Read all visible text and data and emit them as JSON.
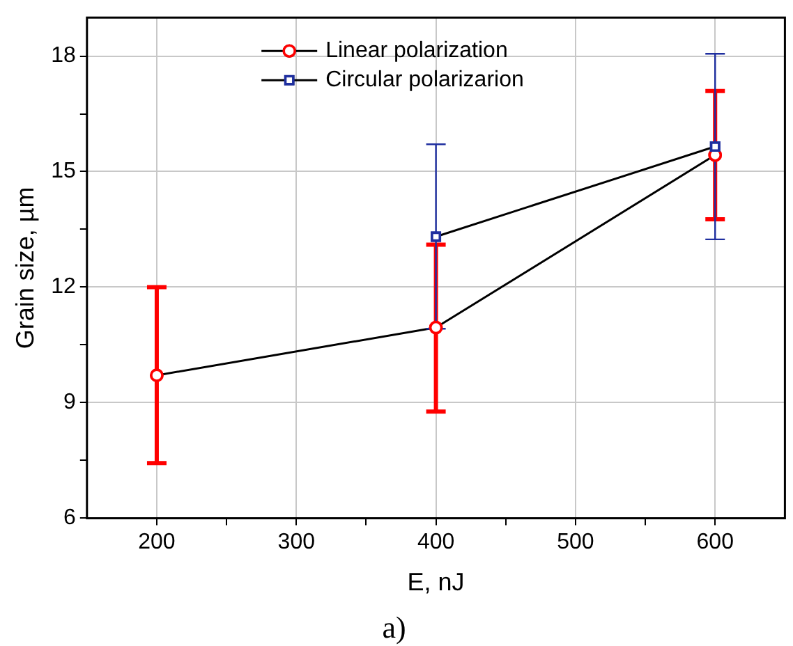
{
  "chart_data": {
    "type": "line",
    "xlabel": "E, nJ",
    "ylabel": "Grain size, µm",
    "annotations": [
      "a)"
    ],
    "xlim": [
      150,
      650
    ],
    "xticks": [
      200,
      {
        "value": 250,
        "label": null
      },
      300,
      {
        "value": 350,
        "label": null
      },
      400,
      {
        "value": 450,
        "label": null
      },
      500,
      {
        "value": 550,
        "label": null
      },
      600
    ],
    "ylim": [
      6,
      19
    ],
    "yticks": [
      6,
      {
        "value": 7.5,
        "label": null
      },
      9,
      {
        "value": 10.5,
        "label": null
      },
      12,
      {
        "value": 13.5,
        "label": null
      },
      15,
      {
        "value": 16.5,
        "label": null
      },
      18
    ],
    "grid": true,
    "legend": "top",
    "line_style": "solid",
    "series": [
      {
        "name": "Linear polarization",
        "color": "#ff0000",
        "marker": "circle",
        "x": [
          200,
          400,
          600
        ],
        "values": [
          9.71,
          10.95,
          15.43
        ],
        "errors": [
          [
            7.43,
            12.0
          ],
          [
            8.77,
            13.1
          ],
          [
            13.76,
            17.09
          ]
        ]
      },
      {
        "name": "Circular polarizarion",
        "color": "#1f2f9f",
        "marker": "square",
        "x": [
          400,
          600
        ],
        "values": [
          13.31,
          15.65
        ],
        "errors": [
          [
            10.92,
            15.71
          ],
          [
            13.24,
            18.06
          ]
        ]
      }
    ]
  }
}
